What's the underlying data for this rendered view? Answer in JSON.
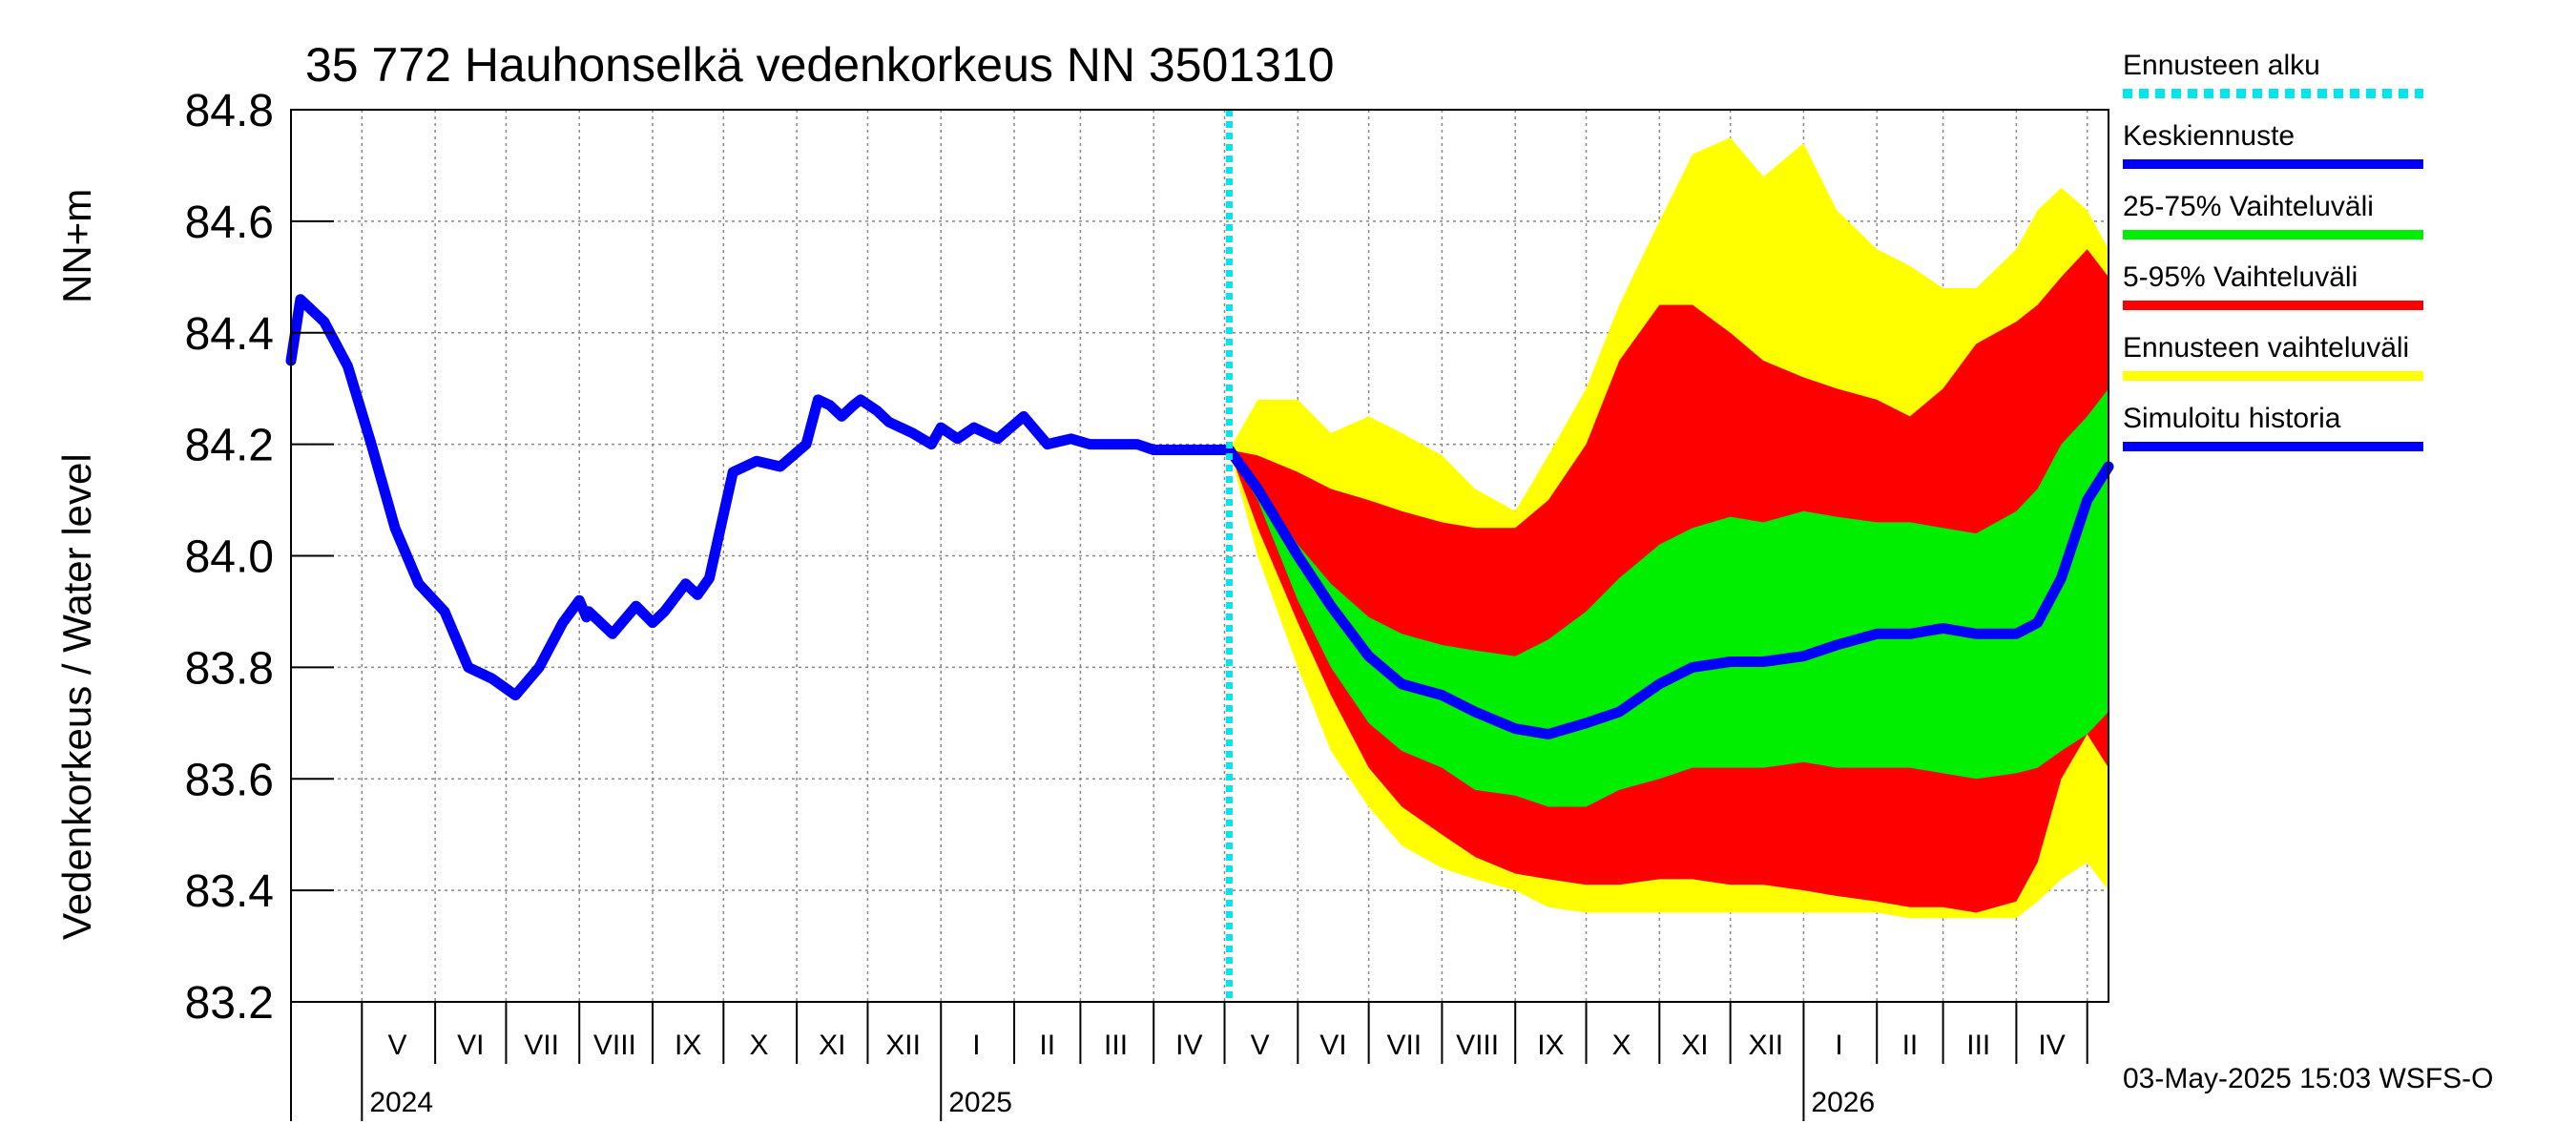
{
  "chart_data": {
    "type": "area",
    "title": "35 772 Hauhonselkä vedenkorkeus NN 3501310",
    "ylabel_left": "Vedenkorkeus / Water level",
    "ylabel_right": "NN+m",
    "y_ticks": [
      "83.2",
      "83.4",
      "83.6",
      "83.8",
      "84.0",
      "84.2",
      "84.4",
      "84.6",
      "84.8"
    ],
    "ylim": [
      83.2,
      84.8
    ],
    "x_range": [
      "2024-04-01",
      "2026-05-10"
    ],
    "grid": true,
    "months": [
      {
        "label": "V",
        "date": "2024-05-16"
      },
      {
        "label": "VI",
        "date": "2024-06-16"
      },
      {
        "label": "VII",
        "date": "2024-07-16"
      },
      {
        "label": "VIII",
        "date": "2024-08-16"
      },
      {
        "label": "IX",
        "date": "2024-09-16"
      },
      {
        "label": "X",
        "date": "2024-10-16"
      },
      {
        "label": "XI",
        "date": "2024-11-16"
      },
      {
        "label": "XII",
        "date": "2024-12-16"
      },
      {
        "label": "I",
        "date": "2025-01-16"
      },
      {
        "label": "II",
        "date": "2025-02-15"
      },
      {
        "label": "III",
        "date": "2025-03-16"
      },
      {
        "label": "IV",
        "date": "2025-04-16"
      },
      {
        "label": "V",
        "date": "2025-05-16"
      },
      {
        "label": "VI",
        "date": "2025-06-16"
      },
      {
        "label": "VII",
        "date": "2025-07-16"
      },
      {
        "label": "VIII",
        "date": "2025-08-16"
      },
      {
        "label": "IX",
        "date": "2025-09-16"
      },
      {
        "label": "X",
        "date": "2025-10-16"
      },
      {
        "label": "XI",
        "date": "2025-11-16"
      },
      {
        "label": "XII",
        "date": "2025-12-16"
      },
      {
        "label": "I",
        "date": "2026-01-16"
      },
      {
        "label": "II",
        "date": "2026-02-15"
      },
      {
        "label": "III",
        "date": "2026-03-16"
      },
      {
        "label": "IV",
        "date": "2026-04-16"
      }
    ],
    "month_boundaries": [
      "2024-05-01",
      "2024-06-01",
      "2024-07-01",
      "2024-08-01",
      "2024-09-01",
      "2024-10-01",
      "2024-11-01",
      "2024-12-01",
      "2025-01-01",
      "2025-02-01",
      "2025-03-01",
      "2025-04-01",
      "2025-05-01",
      "2025-06-01",
      "2025-07-01",
      "2025-08-01",
      "2025-09-01",
      "2025-10-01",
      "2025-11-01",
      "2025-12-01",
      "2026-01-01",
      "2026-02-01",
      "2026-03-01",
      "2026-04-01",
      "2026-05-01"
    ],
    "years": [
      {
        "label": "2024",
        "date": "2024-05-01"
      },
      {
        "label": "2025",
        "date": "2025-01-01"
      },
      {
        "label": "2026",
        "date": "2026-01-01"
      }
    ],
    "forecast_start": "2025-05-03",
    "colors": {
      "forecast_start": "#00e5ee",
      "median": "#0000ff",
      "p25_75": "#00ee00",
      "p5_95": "#ff0000",
      "range": "#ffff00",
      "history": "#0000ff",
      "grid": "#888888"
    },
    "legend": [
      {
        "label": "Ennusteen alku",
        "color": "#00e5ee",
        "style": "dotted"
      },
      {
        "label": "Keskiennuste",
        "color": "#0000ff",
        "style": "solid"
      },
      {
        "label": "25-75% Vaihteluväli",
        "color": "#00ee00",
        "style": "solid"
      },
      {
        "label": "5-95% Vaihteluväli",
        "color": "#ff0000",
        "style": "solid"
      },
      {
        "label": "Ennusteen vaihteluväli",
        "color": "#ffff00",
        "style": "solid"
      },
      {
        "label": "Simuloitu historia",
        "color": "#0000ff",
        "style": "solid"
      }
    ],
    "history": {
      "x": [
        "2024-04-01",
        "2024-04-05",
        "2024-04-15",
        "2024-04-25",
        "2024-05-05",
        "2024-05-15",
        "2024-05-25",
        "2024-06-05",
        "2024-06-15",
        "2024-06-25",
        "2024-07-05",
        "2024-07-15",
        "2024-07-25",
        "2024-08-01",
        "2024-08-04",
        "2024-08-05",
        "2024-08-15",
        "2024-08-25",
        "2024-09-01",
        "2024-09-06",
        "2024-09-15",
        "2024-09-20",
        "2024-09-25",
        "2024-10-05",
        "2024-10-15",
        "2024-10-25",
        "2024-11-05",
        "2024-11-10",
        "2024-11-15",
        "2024-11-20",
        "2024-11-25",
        "2024-11-28",
        "2024-12-05",
        "2024-12-10",
        "2024-12-20",
        "2024-12-28",
        "2025-01-01",
        "2025-01-08",
        "2025-01-15",
        "2025-01-25",
        "2025-02-05",
        "2025-02-15",
        "2025-02-25",
        "2025-03-05",
        "2025-03-15",
        "2025-03-25",
        "2025-04-01",
        "2025-04-08",
        "2025-04-15",
        "2025-04-22",
        "2025-04-28",
        "2025-05-03"
      ],
      "y": [
        84.35,
        84.46,
        84.42,
        84.34,
        84.2,
        84.05,
        83.95,
        83.9,
        83.8,
        83.78,
        83.75,
        83.8,
        83.88,
        83.92,
        83.89,
        83.9,
        83.86,
        83.91,
        83.88,
        83.9,
        83.95,
        83.93,
        83.96,
        84.15,
        84.17,
        84.16,
        84.2,
        84.28,
        84.27,
        84.25,
        84.27,
        84.28,
        84.26,
        84.24,
        84.22,
        84.2,
        84.23,
        84.21,
        84.23,
        84.21,
        84.25,
        84.2,
        84.21,
        84.2,
        84.2,
        84.2,
        84.19,
        84.19,
        84.19,
        84.19,
        84.19,
        84.19
      ]
    },
    "forecast": {
      "x": [
        "2025-05-03",
        "2025-05-15",
        "2025-06-01",
        "2025-06-15",
        "2025-07-01",
        "2025-07-15",
        "2025-08-01",
        "2025-08-15",
        "2025-09-01",
        "2025-09-15",
        "2025-10-01",
        "2025-10-15",
        "2025-11-01",
        "2025-11-15",
        "2025-12-01",
        "2025-12-15",
        "2026-01-01",
        "2026-01-15",
        "2026-02-01",
        "2026-02-15",
        "2026-03-01",
        "2026-03-15",
        "2026-04-01",
        "2026-04-10",
        "2026-04-20",
        "2026-05-01",
        "2026-05-10"
      ],
      "median": [
        84.19,
        84.12,
        84.0,
        83.91,
        83.82,
        83.77,
        83.75,
        83.72,
        83.69,
        83.68,
        83.7,
        83.72,
        83.77,
        83.8,
        83.81,
        83.81,
        83.82,
        83.84,
        83.86,
        83.86,
        83.87,
        83.86,
        83.86,
        83.88,
        83.96,
        84.1,
        84.16
      ],
      "p25": [
        84.19,
        84.1,
        83.92,
        83.8,
        83.7,
        83.65,
        83.62,
        83.58,
        83.57,
        83.55,
        83.55,
        83.58,
        83.6,
        83.62,
        83.62,
        83.62,
        83.63,
        83.62,
        83.62,
        83.62,
        83.61,
        83.6,
        83.61,
        83.62,
        83.65,
        83.68,
        83.72
      ],
      "p75": [
        84.19,
        84.13,
        84.02,
        83.95,
        83.89,
        83.86,
        83.84,
        83.83,
        83.82,
        83.85,
        83.9,
        83.96,
        84.02,
        84.05,
        84.07,
        84.06,
        84.08,
        84.07,
        84.06,
        84.06,
        84.05,
        84.04,
        84.08,
        84.12,
        84.2,
        84.25,
        84.3
      ],
      "p5": [
        84.19,
        84.05,
        83.88,
        83.75,
        83.62,
        83.55,
        83.5,
        83.46,
        83.43,
        83.42,
        83.41,
        83.41,
        83.42,
        83.42,
        83.41,
        83.41,
        83.4,
        83.39,
        83.38,
        83.37,
        83.37,
        83.36,
        83.38,
        83.45,
        83.6,
        83.68,
        83.62
      ],
      "p95": [
        84.19,
        84.18,
        84.15,
        84.12,
        84.1,
        84.08,
        84.06,
        84.05,
        84.05,
        84.1,
        84.2,
        84.35,
        84.45,
        84.45,
        84.4,
        84.35,
        84.32,
        84.3,
        84.28,
        84.25,
        84.3,
        84.38,
        84.42,
        84.45,
        84.5,
        84.55,
        84.5
      ],
      "min": [
        84.19,
        84.0,
        83.8,
        83.65,
        83.55,
        83.48,
        83.44,
        83.42,
        83.4,
        83.37,
        83.36,
        83.36,
        83.36,
        83.36,
        83.36,
        83.36,
        83.36,
        83.36,
        83.36,
        83.35,
        83.35,
        83.35,
        83.35,
        83.38,
        83.42,
        83.45,
        83.4
      ],
      "max": [
        84.19,
        84.28,
        84.28,
        84.22,
        84.25,
        84.22,
        84.18,
        84.12,
        84.08,
        84.18,
        84.3,
        84.45,
        84.6,
        84.72,
        84.75,
        84.68,
        84.74,
        84.62,
        84.55,
        84.52,
        84.48,
        84.48,
        84.55,
        84.62,
        84.66,
        84.62,
        84.55
      ]
    }
  },
  "footer": {
    "timestamp": "03-May-2025 15:03 WSFS-O"
  }
}
